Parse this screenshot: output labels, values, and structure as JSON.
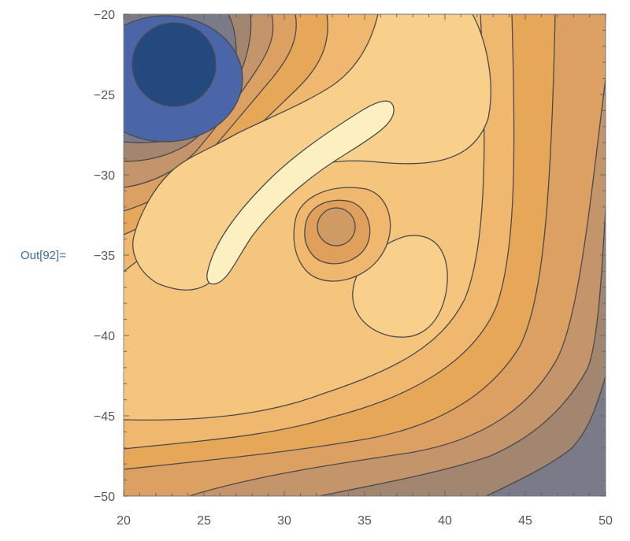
{
  "cell": {
    "output_label": "Out[92]="
  },
  "chart_data": {
    "type": "contour",
    "x_range": [
      20,
      50
    ],
    "y_range": [
      -50,
      -20
    ],
    "x_ticks": [
      20,
      25,
      30,
      35,
      40,
      45,
      50
    ],
    "y_ticks": [
      -20,
      -25,
      -30,
      -35,
      -40,
      -45,
      -50
    ],
    "x_tick_labels": [
      "20",
      "25",
      "30",
      "35",
      "40",
      "45",
      "50"
    ],
    "y_tick_labels": [
      "−20",
      "−25",
      "−30",
      "−35",
      "−40",
      "−45",
      "−50"
    ],
    "grid": false,
    "colors": {
      "band_lowest": "#24497e",
      "band_low": "#4a66a8",
      "band_mid": "#a98a72",
      "band_orange": "#e7a758",
      "band_light": "#f8d08b",
      "band_highest": "#fdf0c0",
      "contour_line": "#4a4a4a",
      "frame": "#888888",
      "background": "#ffffff"
    }
  }
}
